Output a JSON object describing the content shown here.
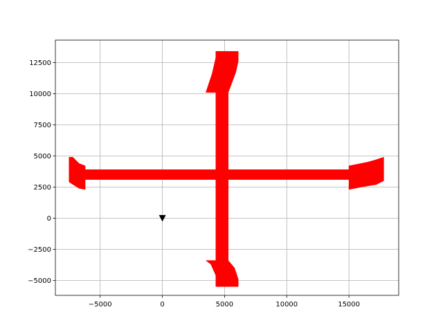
{
  "chart_data": {
    "type": "area",
    "title": "",
    "xlabel": "",
    "ylabel": "",
    "xlim": [
      -8600,
      19000
    ],
    "ylim": [
      -6200,
      14300
    ],
    "grid": true,
    "x_ticks": [
      -5000,
      0,
      5000,
      10000,
      15000
    ],
    "x_tick_labels": [
      "−5000",
      "0",
      "5000",
      "10000",
      "15000"
    ],
    "y_ticks": [
      -5000,
      -2500,
      0,
      2500,
      5000,
      7500,
      10000,
      12500
    ],
    "y_tick_labels": [
      "−5000",
      "−2500",
      "0",
      "2500",
      "5000",
      "7500",
      "10000",
      "12500"
    ],
    "fill_color": "#ff0000",
    "marker_color": "#000000",
    "shapes": [
      {
        "name": "horizontal-bar",
        "points": [
          [
            -6200,
            3100
          ],
          [
            15000,
            3100
          ],
          [
            15000,
            3900
          ],
          [
            -6200,
            3900
          ]
        ]
      },
      {
        "name": "vertical-bar",
        "points": [
          [
            4300,
            -4800
          ],
          [
            5300,
            -4800
          ],
          [
            5300,
            13400
          ],
          [
            4300,
            13400
          ]
        ]
      },
      {
        "name": "top-flared-end",
        "points": [
          [
            4300,
            13400
          ],
          [
            6100,
            13400
          ],
          [
            6100,
            12600
          ],
          [
            5900,
            11700
          ],
          [
            5300,
            10100
          ],
          [
            3500,
            10100
          ],
          [
            4000,
            11600
          ],
          [
            4300,
            12900
          ]
        ]
      },
      {
        "name": "bottom-flared-end",
        "points": [
          [
            3500,
            -3400
          ],
          [
            5300,
            -3400
          ],
          [
            5800,
            -4000
          ],
          [
            6100,
            -4900
          ],
          [
            6100,
            -5500
          ],
          [
            4300,
            -5500
          ],
          [
            4300,
            -4600
          ],
          [
            3900,
            -3700
          ]
        ]
      },
      {
        "name": "left-flared-end",
        "points": [
          [
            -7500,
            4900
          ],
          [
            -7200,
            4900
          ],
          [
            -6700,
            4400
          ],
          [
            -6200,
            4200
          ],
          [
            -6200,
            2300
          ],
          [
            -6700,
            2400
          ],
          [
            -7500,
            2900
          ]
        ]
      },
      {
        "name": "right-flared-end",
        "points": [
          [
            15000,
            4200
          ],
          [
            16500,
            4500
          ],
          [
            17200,
            4700
          ],
          [
            17800,
            4900
          ],
          [
            17800,
            3000
          ],
          [
            17200,
            2700
          ],
          [
            16000,
            2500
          ],
          [
            15000,
            2300
          ]
        ]
      }
    ],
    "markers": [
      {
        "x": 0,
        "y": 0,
        "symbol": "triangle-down"
      }
    ]
  }
}
